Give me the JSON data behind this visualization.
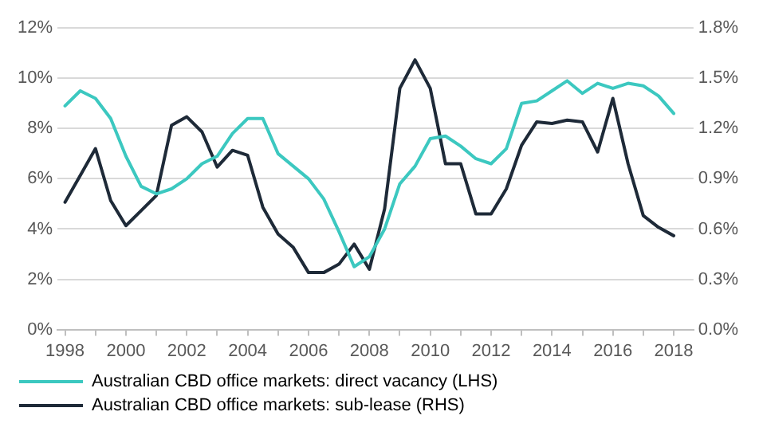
{
  "chart_data": {
    "type": "line",
    "x": [
      1998,
      1998.5,
      1999,
      1999.5,
      2000,
      2000.5,
      2001,
      2001.5,
      2002,
      2002.5,
      2003,
      2003.5,
      2004,
      2004.5,
      2005,
      2005.5,
      2006,
      2006.5,
      2007,
      2007.5,
      2008,
      2008.5,
      2009,
      2009.5,
      2010,
      2010.5,
      2011,
      2011.5,
      2012,
      2012.5,
      2013,
      2013.5,
      2014,
      2014.5,
      2015,
      2015.5,
      2016,
      2016.5,
      2017,
      2017.5,
      2018
    ],
    "series": [
      {
        "name": "Australian CBD office markets: direct vacancy (LHS)",
        "color": "#3cc8c0",
        "values": [
          8.9,
          9.5,
          9.2,
          8.4,
          6.9,
          5.7,
          5.4,
          5.6,
          6.0,
          6.6,
          6.9,
          7.8,
          8.4,
          8.4,
          7.0,
          6.5,
          6.0,
          5.2,
          3.9,
          2.5,
          2.9,
          4.0,
          5.8,
          6.5,
          7.6,
          7.7,
          7.3,
          6.8,
          6.6,
          7.2,
          9.0,
          9.1,
          9.5,
          9.9,
          9.4,
          9.8,
          9.6,
          9.8,
          9.7,
          9.3,
          8.6
        ]
      },
      {
        "name": "Australian CBD office markets: sub-lease (RHS)",
        "color": "#1e2a38",
        "axis": "y2",
        "values": [
          0.76,
          0.92,
          1.08,
          0.77,
          0.62,
          0.71,
          0.8,
          1.22,
          1.27,
          1.18,
          0.97,
          1.07,
          1.04,
          0.73,
          0.57,
          0.49,
          0.34,
          0.34,
          0.39,
          0.51,
          0.36,
          0.72,
          1.44,
          1.61,
          1.44,
          0.99,
          0.99,
          0.69,
          0.69,
          0.84,
          1.1,
          1.24,
          1.23,
          1.25,
          1.24,
          1.06,
          1.38,
          0.99,
          0.68,
          0.61,
          0.56
        ]
      }
    ],
    "xlim": [
      1997.75,
      2018.65
    ],
    "xticks": [
      1998,
      {
        "value": 1999,
        "label": null
      },
      2000,
      {
        "value": 2001,
        "label": null
      },
      2002,
      {
        "value": 2003,
        "label": null
      },
      2004,
      {
        "value": 2005,
        "label": null
      },
      2006,
      {
        "value": 2007,
        "label": null
      },
      2008,
      {
        "value": 2009,
        "label": null
      },
      2010,
      {
        "value": 2011,
        "label": null
      },
      2012,
      {
        "value": 2013,
        "label": null
      },
      2014,
      {
        "value": 2015,
        "label": null
      },
      2016,
      {
        "value": 2017,
        "label": null
      },
      2018
    ],
    "ylim": [
      0,
      12
    ],
    "yticks": [
      {
        "value": 0,
        "label": "0%"
      },
      {
        "value": 2,
        "label": "2%"
      },
      {
        "value": 4,
        "label": "4%"
      },
      {
        "value": 6,
        "label": "6%"
      },
      {
        "value": 8,
        "label": "8%"
      },
      {
        "value": 10,
        "label": "10%"
      },
      {
        "value": 12,
        "label": "12%"
      }
    ],
    "y2lim": [
      0,
      1.8
    ],
    "y2ticks": [
      {
        "value": 0,
        "label": "0.0%"
      },
      {
        "value": 0.3,
        "label": "0.3%"
      },
      {
        "value": 0.6,
        "label": "0.6%"
      },
      {
        "value": 0.9,
        "label": "0.9%"
      },
      {
        "value": 1.2,
        "label": "1.2%"
      },
      {
        "value": 1.5,
        "label": "1.5%"
      },
      {
        "value": 1.8,
        "label": "1.8%"
      }
    ],
    "grid": "y",
    "legend": "bottom",
    "marker": "none",
    "line_style": "solid"
  }
}
